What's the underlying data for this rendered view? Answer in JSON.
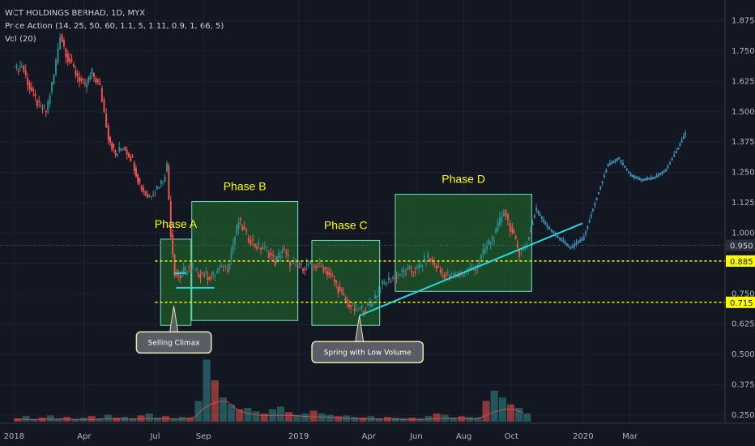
{
  "header": {
    "title": "WCT HOLDINGS BERHAD, 1D, MYX",
    "indicator_price_action": "Price Action (14, 25, 50, 60, 1.1, 5, 1.11, 0.9, 1, 66, 5)",
    "indicator_volume": "Vol (20)"
  },
  "colors": {
    "background": "#131722",
    "grid": "#1e2230",
    "up": "#2e8b8b",
    "down": "#ef5350",
    "projection": "#3d8fb5",
    "box_fill": "#1f5a2a",
    "box_stroke": "#6fe0c0",
    "phase_label": "#ffff00",
    "trend_line": "#28d8d8",
    "level_line": "#ffff00",
    "volume_ma": "#ef5350",
    "axis_text": "#b2b5be"
  },
  "chart_data": {
    "type": "candlestick",
    "symbol": "WCT HOLDINGS BERHAD",
    "interval": "1D",
    "exchange": "MYX",
    "ylim": [
      0.24,
      1.9
    ],
    "y_ticks": [
      "1.875",
      "1.750",
      "1.625",
      "1.500",
      "1.375",
      "1.250",
      "1.125",
      "1.000",
      "0.875",
      "0.750",
      "0.625",
      "0.500",
      "0.375",
      "0.250"
    ],
    "x_ticks": [
      "2018",
      "Apr",
      "Jul",
      "Sep",
      "2019",
      "Apr",
      "Jun",
      "Aug",
      "Oct",
      "2020",
      "Mar"
    ],
    "price_labels": [
      {
        "text": "0.950",
        "value": 0.95,
        "style": "current"
      },
      {
        "text": "0.885",
        "value": 0.885,
        "style": "level"
      },
      {
        "text": "0.715",
        "value": 0.715,
        "style": "level"
      }
    ],
    "price_path": [
      [
        "2018-01-01",
        1.67
      ],
      [
        "2018-01-10",
        1.69
      ],
      [
        "2018-01-20",
        1.6
      ],
      [
        "2018-02-01",
        1.52
      ],
      [
        "2018-02-10",
        1.5
      ],
      [
        "2018-02-20",
        1.65
      ],
      [
        "2018-02-28",
        1.82
      ],
      [
        "2018-03-10",
        1.72
      ],
      [
        "2018-03-20",
        1.66
      ],
      [
        "2018-04-01",
        1.6
      ],
      [
        "2018-04-10",
        1.66
      ],
      [
        "2018-04-20",
        1.6
      ],
      [
        "2018-05-01",
        1.4
      ],
      [
        "2018-05-10",
        1.32
      ],
      [
        "2018-05-20",
        1.36
      ],
      [
        "2018-06-01",
        1.3
      ],
      [
        "2018-06-10",
        1.2
      ],
      [
        "2018-06-20",
        1.15
      ],
      [
        "2018-06-30",
        1.18
      ],
      [
        "2018-07-10",
        1.22
      ],
      [
        "2018-07-15",
        1.28
      ],
      [
        "2018-07-20",
        1.0
      ],
      [
        "2018-07-25",
        0.84
      ],
      [
        "2018-08-01",
        0.82
      ],
      [
        "2018-08-10",
        0.86
      ],
      [
        "2018-08-20",
        0.84
      ],
      [
        "2018-09-01",
        0.83
      ],
      [
        "2018-09-10",
        0.82
      ],
      [
        "2018-09-20",
        0.85
      ],
      [
        "2018-10-01",
        0.86
      ],
      [
        "2018-10-15",
        1.05
      ],
      [
        "2018-10-25",
        0.99
      ],
      [
        "2018-11-05",
        0.95
      ],
      [
        "2018-11-20",
        0.93
      ],
      [
        "2018-12-01",
        0.88
      ],
      [
        "2018-12-10",
        0.93
      ],
      [
        "2018-12-20",
        0.88
      ],
      [
        "2019-01-01",
        0.86
      ],
      [
        "2019-01-15",
        0.87
      ],
      [
        "2019-02-01",
        0.86
      ],
      [
        "2019-02-15",
        0.8
      ],
      [
        "2019-03-01",
        0.72
      ],
      [
        "2019-03-15",
        0.68
      ],
      [
        "2019-04-01",
        0.7
      ],
      [
        "2019-04-15",
        0.78
      ],
      [
        "2019-05-01",
        0.82
      ],
      [
        "2019-05-15",
        0.84
      ],
      [
        "2019-06-01",
        0.85
      ],
      [
        "2019-06-15",
        0.9
      ],
      [
        "2019-07-01",
        0.84
      ],
      [
        "2019-07-15",
        0.82
      ],
      [
        "2019-08-01",
        0.84
      ],
      [
        "2019-08-15",
        0.86
      ],
      [
        "2019-09-01",
        0.96
      ],
      [
        "2019-09-10",
        1.0
      ],
      [
        "2019-09-20",
        1.1
      ],
      [
        "2019-10-01",
        1.0
      ],
      [
        "2019-10-10",
        0.92
      ],
      [
        "2019-10-20",
        0.95
      ]
    ],
    "projection_path": [
      [
        "2019-10-20",
        0.95
      ],
      [
        "2019-11-01",
        1.1
      ],
      [
        "2019-11-15",
        1.03
      ],
      [
        "2019-12-01",
        0.98
      ],
      [
        "2019-12-15",
        0.94
      ],
      [
        "2020-01-01",
        0.98
      ],
      [
        "2020-01-15",
        1.12
      ],
      [
        "2020-02-01",
        1.28
      ],
      [
        "2020-02-15",
        1.31
      ],
      [
        "2020-03-01",
        1.24
      ],
      [
        "2020-03-15",
        1.22
      ],
      [
        "2020-04-01",
        1.23
      ],
      [
        "2020-04-15",
        1.26
      ],
      [
        "2020-05-01",
        1.35
      ],
      [
        "2020-05-10",
        1.41
      ]
    ],
    "volume": {
      "bars_relative": [
        0.05,
        0.08,
        0.04,
        0.06,
        0.09,
        0.05,
        0.07,
        0.04,
        0.06,
        0.08,
        0.05,
        0.1,
        0.06,
        0.07,
        0.05,
        0.09,
        0.12,
        0.06,
        0.08,
        0.05,
        0.07,
        0.06,
        0.3,
        0.9,
        0.6,
        0.35,
        0.25,
        0.18,
        0.2,
        0.15,
        0.12,
        0.18,
        0.22,
        0.14,
        0.1,
        0.12,
        0.16,
        0.12,
        0.1,
        0.08,
        0.09,
        0.07,
        0.06,
        0.08,
        0.05,
        0.07,
        0.06,
        0.05,
        0.06,
        0.05,
        0.08,
        0.12,
        0.1,
        0.06,
        0.08,
        0.07,
        0.06,
        0.3,
        0.45,
        0.35,
        0.25,
        0.2,
        0.12
      ]
    },
    "annotations": [
      {
        "type": "box",
        "label": "Phase A",
        "from": "2018-07-08",
        "to": "2018-08-16",
        "low": 0.62,
        "high": 0.975
      },
      {
        "type": "box",
        "label": "Phase B",
        "from": "2018-08-17",
        "to": "2018-12-31",
        "low": 0.64,
        "high": 1.13
      },
      {
        "type": "box",
        "label": "Phase C",
        "from": "2019-01-18",
        "to": "2019-04-15",
        "low": 0.62,
        "high": 0.97
      },
      {
        "type": "box",
        "label": "Phase D",
        "from": "2019-05-05",
        "to": "2019-10-27",
        "low": 0.76,
        "high": 1.16
      },
      {
        "type": "callout",
        "label": "Selling Climax",
        "date": "2018-07-25",
        "value": 0.7
      },
      {
        "type": "callout",
        "label": "Spring with Low Volume",
        "date": "2019-03-20",
        "value": 0.66
      }
    ],
    "trend_line": {
      "from": [
        "2019-03-20",
        0.66
      ],
      "to": [
        "2019-12-31",
        1.04
      ]
    },
    "resistance_lines": [
      {
        "from": [
          "2018-07-25",
          0.835
        ],
        "to": [
          "2018-08-10",
          0.835
        ]
      },
      {
        "from": [
          "2018-07-28",
          0.775
        ],
        "to": [
          "2018-09-15",
          0.775
        ]
      }
    ],
    "levels": [
      0.885,
      0.715
    ],
    "current_price": 0.95
  }
}
